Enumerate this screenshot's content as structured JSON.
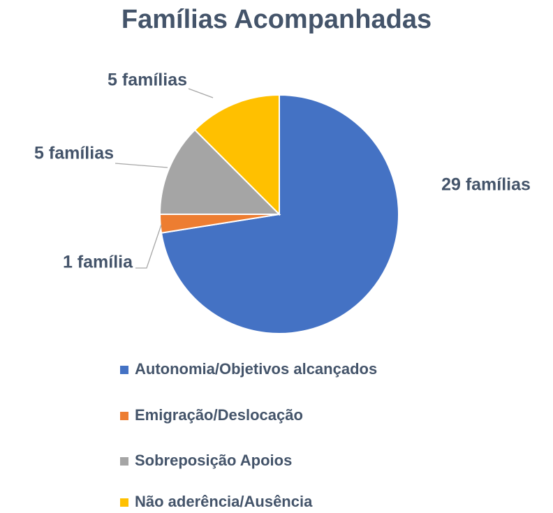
{
  "chart_data": {
    "type": "pie",
    "title": "Famílias Acompanhadas",
    "categories": [
      "Autonomia/Objetivos alcançados",
      "Emigração/Deslocação",
      "Sobreposição Apoios",
      "Não aderência/Ausência"
    ],
    "values": [
      29,
      1,
      5,
      5
    ],
    "value_labels": [
      "29 famílias",
      "1 família",
      "5 famílias",
      "5 famílias"
    ],
    "colors": [
      "#4472c4",
      "#ed7d31",
      "#a5a5a5",
      "#ffc000"
    ],
    "legend": "bottom"
  }
}
